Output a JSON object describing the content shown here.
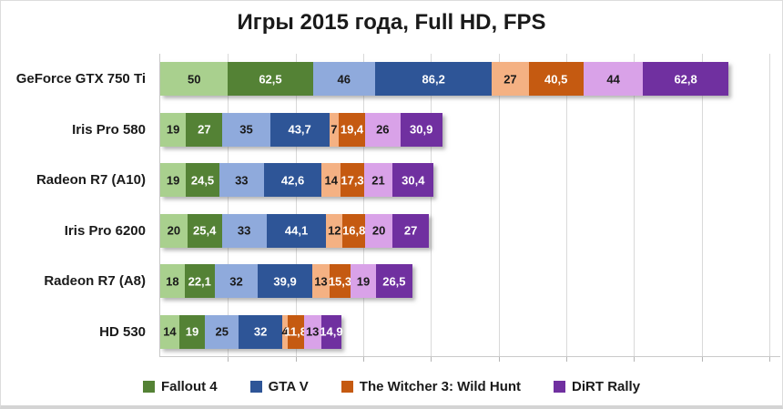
{
  "title": "Игры 2015 года, Full HD, FPS",
  "chart_data": {
    "type": "bar",
    "stacked": true,
    "orientation": "horizontal",
    "decimal_separator": ",",
    "categories": [
      "GeForce GTX 750 Ti",
      "Iris Pro 580",
      "Radeon R7 (A10)",
      "Iris Pro 6200",
      "Radeon R7 (A8)",
      "HD 530"
    ],
    "series": [
      {
        "name": "Fallout 4 (light)",
        "game": "Fallout 4",
        "shade": "light",
        "color": "#a9d08e",
        "text_color": "#1a1a1a",
        "values": [
          50,
          19,
          19,
          20,
          18,
          14
        ]
      },
      {
        "name": "Fallout 4 (dark)",
        "game": "Fallout 4",
        "shade": "dark",
        "color": "#548235",
        "text_color": "#ffffff",
        "values": [
          62.5,
          27,
          24.5,
          25.4,
          22.1,
          19
        ]
      },
      {
        "name": "GTA V (light)",
        "game": "GTA V",
        "shade": "light",
        "color": "#8faadc",
        "text_color": "#1a1a1a",
        "values": [
          46,
          35,
          33,
          33,
          32,
          25
        ]
      },
      {
        "name": "GTA V (dark)",
        "game": "GTA V",
        "shade": "dark",
        "color": "#2e5597",
        "text_color": "#ffffff",
        "values": [
          86.2,
          43.7,
          42.6,
          44.1,
          39.9,
          32
        ]
      },
      {
        "name": "The Witcher 3: Wild Hunt (light)",
        "game": "The Witcher 3: Wild Hunt",
        "shade": "light",
        "color": "#f4b183",
        "text_color": "#1a1a1a",
        "values": [
          27,
          7,
          14,
          12,
          13,
          4
        ]
      },
      {
        "name": "The Witcher 3: Wild Hunt (dark)",
        "game": "The Witcher 3: Wild Hunt",
        "shade": "dark",
        "color": "#c55a11",
        "text_color": "#ffffff",
        "values": [
          40.5,
          19.4,
          17.3,
          16.8,
          15.3,
          11.8
        ]
      },
      {
        "name": "DiRT Rally (light)",
        "game": "DiRT Rally",
        "shade": "light",
        "color": "#d9a2e8",
        "text_color": "#1a1a1a",
        "values": [
          44,
          26,
          21,
          20,
          19,
          13
        ]
      },
      {
        "name": "DiRT Rally (dark)",
        "game": "DiRT Rally",
        "shade": "dark",
        "color": "#7030a0",
        "text_color": "#ffffff",
        "values": [
          62.8,
          30.9,
          30.4,
          27,
          26.5,
          14.9
        ]
      }
    ],
    "x_axis": {
      "min": 0,
      "max": 458,
      "gridline_step": 50,
      "gridlines_visible": true,
      "tick_labels_visible": false
    },
    "legend": [
      {
        "label": "Fallout 4",
        "color": "#548235"
      },
      {
        "label": "GTA V",
        "color": "#2e5597"
      },
      {
        "label": "The Witcher 3: Wild Hunt",
        "color": "#c55a11"
      },
      {
        "label": "DiRT Rally",
        "color": "#7030a0"
      }
    ],
    "legend_position": "bottom"
  },
  "colors": {
    "background": "#ffffff",
    "gridline": "#d9d9d9",
    "axis": "#c9c9c9",
    "title_text": "#1a1a1a"
  }
}
